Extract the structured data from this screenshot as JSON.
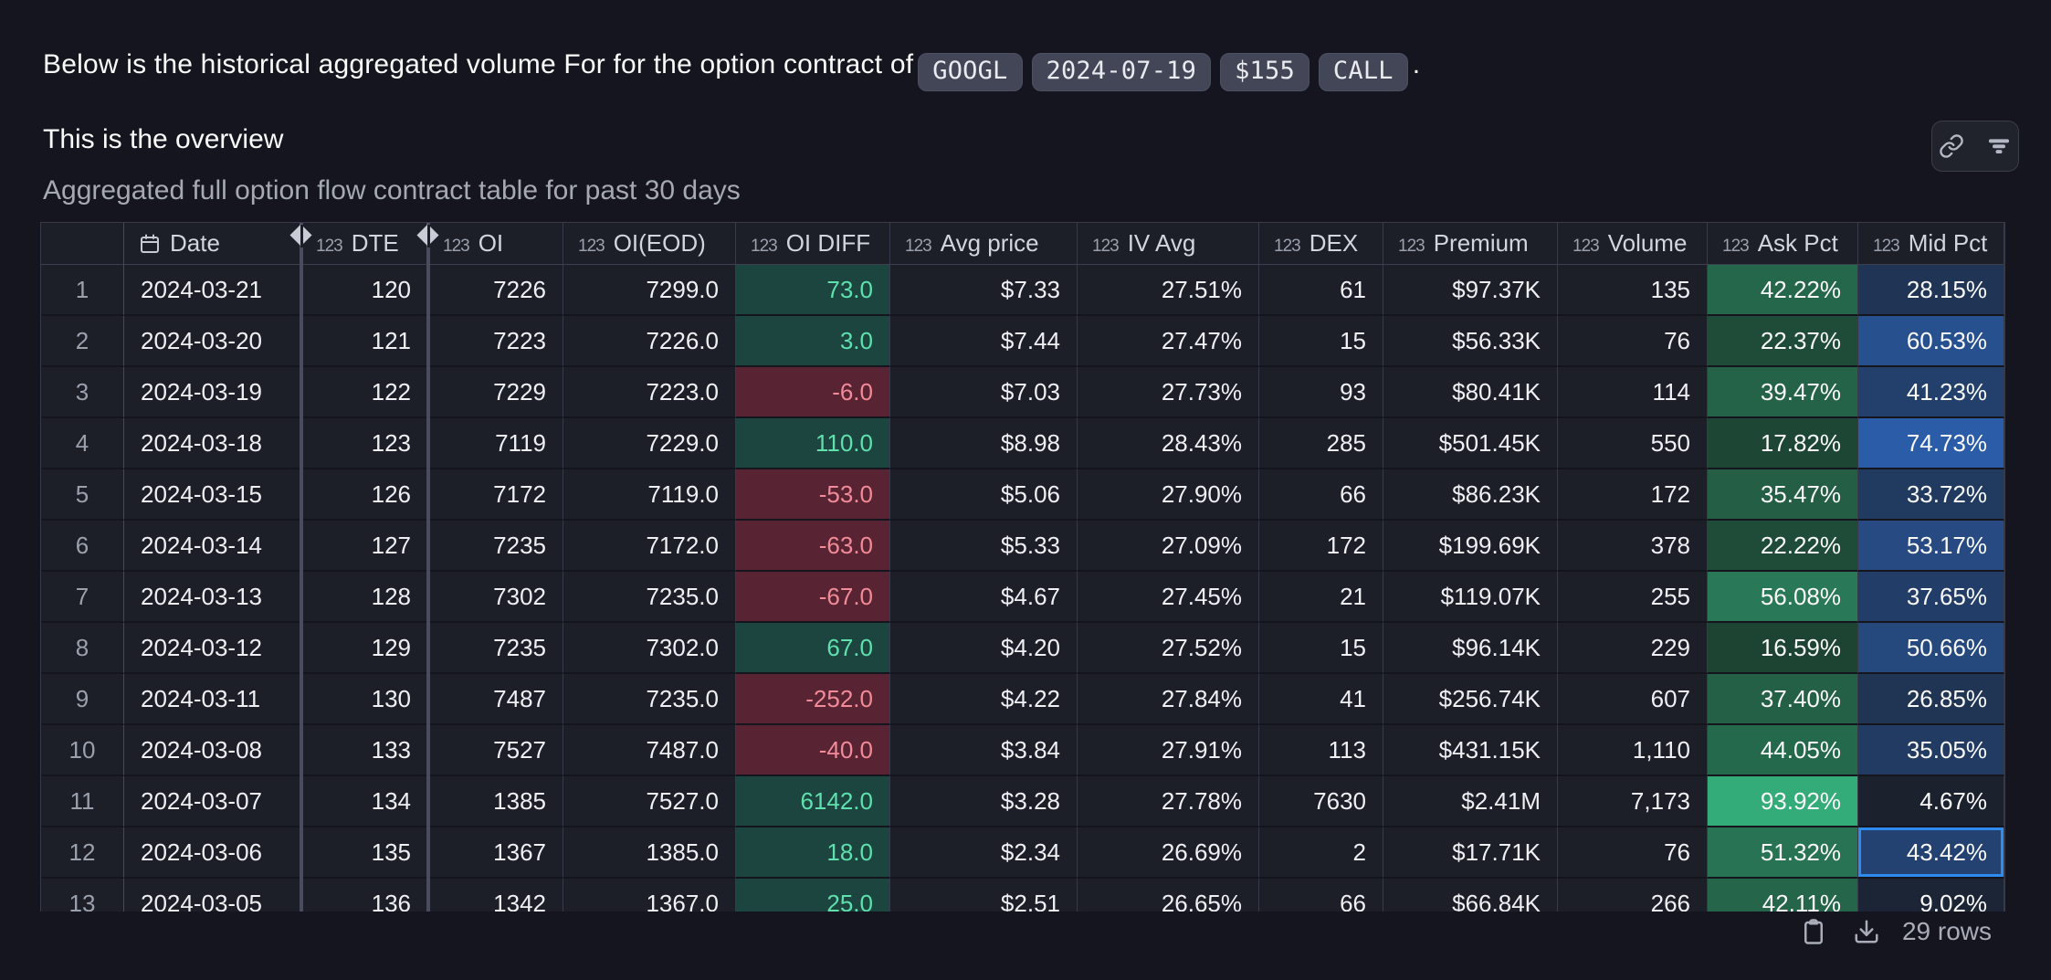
{
  "intro": {
    "sentence_prefix": "Below is the historical aggregated volume For for the option contract of",
    "tags": [
      "GOOGL",
      "2024-07-19",
      "$155",
      "CALL"
    ],
    "sentence_suffix": ".",
    "line2": "This is the overview"
  },
  "widget": {
    "caption": "Aggregated full option flow contract table for past 30 days",
    "toolbar_icons": [
      "link-icon",
      "filter-icon"
    ]
  },
  "table": {
    "columns": [
      {
        "key": "n",
        "label": "",
        "icon": null,
        "type": "row-number"
      },
      {
        "key": "date",
        "label": "Date",
        "icon": "calendar",
        "type": "date"
      },
      {
        "key": "dte",
        "label": "DTE",
        "icon": "123",
        "type": "number"
      },
      {
        "key": "oi",
        "label": "OI",
        "icon": "123",
        "type": "number"
      },
      {
        "key": "oi_eod",
        "label": "OI(EOD)",
        "icon": "123",
        "type": "number"
      },
      {
        "key": "oi_diff",
        "label": "OI DIFF",
        "icon": "123",
        "type": "number-colored"
      },
      {
        "key": "avg_price",
        "label": "Avg price",
        "icon": "123",
        "type": "number"
      },
      {
        "key": "iv_avg",
        "label": "IV Avg",
        "icon": "123",
        "type": "number"
      },
      {
        "key": "dex",
        "label": "DEX",
        "icon": "123",
        "type": "number"
      },
      {
        "key": "premium",
        "label": "Premium",
        "icon": "123",
        "type": "number"
      },
      {
        "key": "volume",
        "label": "Volume",
        "icon": "123",
        "type": "number"
      },
      {
        "key": "ask_pct",
        "label": "Ask Pct",
        "icon": "123",
        "type": "percent-green"
      },
      {
        "key": "mid_pct",
        "label": "Mid Pct",
        "icon": "123",
        "type": "percent-blue"
      }
    ],
    "rows": [
      {
        "n": "1",
        "date": "2024-03-21",
        "dte": "120",
        "oi": "7226",
        "oi_eod": "7299.0",
        "oi_diff": "73.0",
        "avg_price": "$7.33",
        "iv_avg": "27.51%",
        "dex": "61",
        "premium": "$97.37K",
        "volume": "135",
        "ask_pct": 42.22,
        "mid_pct": 28.15
      },
      {
        "n": "2",
        "date": "2024-03-20",
        "dte": "121",
        "oi": "7223",
        "oi_eod": "7226.0",
        "oi_diff": "3.0",
        "avg_price": "$7.44",
        "iv_avg": "27.47%",
        "dex": "15",
        "premium": "$56.33K",
        "volume": "76",
        "ask_pct": 22.37,
        "mid_pct": 60.53
      },
      {
        "n": "3",
        "date": "2024-03-19",
        "dte": "122",
        "oi": "7229",
        "oi_eod": "7223.0",
        "oi_diff": "-6.0",
        "avg_price": "$7.03",
        "iv_avg": "27.73%",
        "dex": "93",
        "premium": "$80.41K",
        "volume": "114",
        "ask_pct": 39.47,
        "mid_pct": 41.23
      },
      {
        "n": "4",
        "date": "2024-03-18",
        "dte": "123",
        "oi": "7119",
        "oi_eod": "7229.0",
        "oi_diff": "110.0",
        "avg_price": "$8.98",
        "iv_avg": "28.43%",
        "dex": "285",
        "premium": "$501.45K",
        "volume": "550",
        "ask_pct": 17.82,
        "mid_pct": 74.73
      },
      {
        "n": "5",
        "date": "2024-03-15",
        "dte": "126",
        "oi": "7172",
        "oi_eod": "7119.0",
        "oi_diff": "-53.0",
        "avg_price": "$5.06",
        "iv_avg": "27.90%",
        "dex": "66",
        "premium": "$86.23K",
        "volume": "172",
        "ask_pct": 35.47,
        "mid_pct": 33.72
      },
      {
        "n": "6",
        "date": "2024-03-14",
        "dte": "127",
        "oi": "7235",
        "oi_eod": "7172.0",
        "oi_diff": "-63.0",
        "avg_price": "$5.33",
        "iv_avg": "27.09%",
        "dex": "172",
        "premium": "$199.69K",
        "volume": "378",
        "ask_pct": 22.22,
        "mid_pct": 53.17
      },
      {
        "n": "7",
        "date": "2024-03-13",
        "dte": "128",
        "oi": "7302",
        "oi_eod": "7235.0",
        "oi_diff": "-67.0",
        "avg_price": "$4.67",
        "iv_avg": "27.45%",
        "dex": "21",
        "premium": "$119.07K",
        "volume": "255",
        "ask_pct": 56.08,
        "mid_pct": 37.65
      },
      {
        "n": "8",
        "date": "2024-03-12",
        "dte": "129",
        "oi": "7235",
        "oi_eod": "7302.0",
        "oi_diff": "67.0",
        "avg_price": "$4.20",
        "iv_avg": "27.52%",
        "dex": "15",
        "premium": "$96.14K",
        "volume": "229",
        "ask_pct": 16.59,
        "mid_pct": 50.66
      },
      {
        "n": "9",
        "date": "2024-03-11",
        "dte": "130",
        "oi": "7487",
        "oi_eod": "7235.0",
        "oi_diff": "-252.0",
        "avg_price": "$4.22",
        "iv_avg": "27.84%",
        "dex": "41",
        "premium": "$256.74K",
        "volume": "607",
        "ask_pct": 37.4,
        "mid_pct": 26.85
      },
      {
        "n": "10",
        "date": "2024-03-08",
        "dte": "133",
        "oi": "7527",
        "oi_eod": "7487.0",
        "oi_diff": "-40.0",
        "avg_price": "$3.84",
        "iv_avg": "27.91%",
        "dex": "113",
        "premium": "$431.15K",
        "volume": "1,110",
        "ask_pct": 44.05,
        "mid_pct": 35.05
      },
      {
        "n": "11",
        "date": "2024-03-07",
        "dte": "134",
        "oi": "1385",
        "oi_eod": "7527.0",
        "oi_diff": "6142.0",
        "avg_price": "$3.28",
        "iv_avg": "27.78%",
        "dex": "7630",
        "premium": "$2.41M",
        "volume": "7,173",
        "ask_pct": 93.92,
        "mid_pct": 4.67
      },
      {
        "n": "12",
        "date": "2024-03-06",
        "dte": "135",
        "oi": "1367",
        "oi_eod": "1385.0",
        "oi_diff": "18.0",
        "avg_price": "$2.34",
        "iv_avg": "26.69%",
        "dex": "2",
        "premium": "$17.71K",
        "volume": "76",
        "ask_pct": 51.32,
        "mid_pct": 43.42
      },
      {
        "n": "13",
        "date": "2024-03-05",
        "dte": "136",
        "oi": "1342",
        "oi_eod": "1367.0",
        "oi_diff": "25.0",
        "avg_price": "$2.51",
        "iv_avg": "26.65%",
        "dex": "66",
        "premium": "$66.84K",
        "volume": "266",
        "ask_pct": 42.11,
        "mid_pct": 9.02
      }
    ],
    "selected_cell": {
      "row_index": 11,
      "column": "mid_pct"
    }
  },
  "footer": {
    "icons": [
      "clipboard-icon",
      "download-icon"
    ],
    "row_count": "29 rows"
  },
  "colors": {
    "page_bg": "#14151e",
    "cell_bg": "#1c1e28",
    "accent_blue": "#2e8cf0",
    "positive_bg": "#1c4540",
    "positive_text": "#5fe0ad",
    "negative_bg": "#582332",
    "negative_text": "#f18b99"
  }
}
